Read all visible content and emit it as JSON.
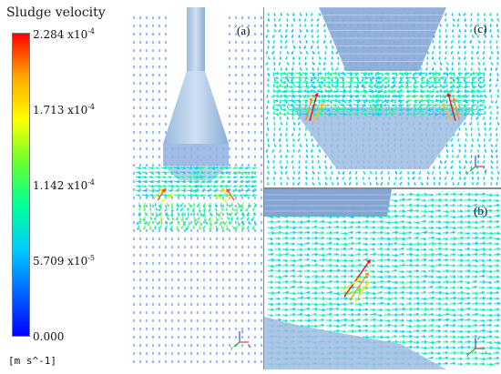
{
  "legend": {
    "title": "Sludge velocity",
    "ticks": [
      {
        "mantissa": "2.284",
        "exp": "-4"
      },
      {
        "mantissa": "1.713",
        "exp": "-4"
      },
      {
        "mantissa": "1.142",
        "exp": "-4"
      },
      {
        "mantissa": "5.709",
        "exp": "-5"
      },
      {
        "mantissa": "0.000",
        "exp": ""
      }
    ],
    "unit": "[m s^-1]",
    "colors": [
      "#ff0000",
      "#ffaa00",
      "#ffff00",
      "#66ff33",
      "#00ff99",
      "#00ccff",
      "#0066ff",
      "#0000ff"
    ]
  },
  "panels": {
    "a": {
      "label": "(a)"
    },
    "b": {
      "label": "(b)"
    },
    "c": {
      "label": "(c)"
    }
  },
  "axis_triad": {
    "labels": [
      "z",
      "x",
      "y"
    ]
  }
}
